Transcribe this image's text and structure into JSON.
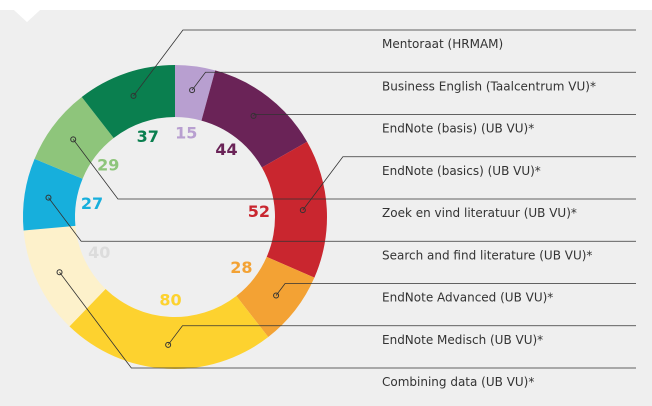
{
  "chart_data": {
    "type": "donut",
    "categories": [
      "Business English (Taalcentrum VU)*",
      "EndNote (basis) (UB VU)*",
      "EndNote (basics) (UB VU)*",
      "EndNote Advanced (UB VU)*",
      "EndNote Medisch (UB VU)*",
      "Combining data (UB VU)*",
      "Search and find literature (UB VU)*",
      "Zoek en vind literatuur (UB VU)*",
      "Mentoraat (HRMAM)"
    ],
    "values": [
      15,
      44,
      52,
      28,
      80,
      40,
      27,
      29,
      37
    ],
    "colors": [
      "#b89fd0",
      "#6a2357",
      "#c9262f",
      "#f3a234",
      "#fdd22f",
      "#fdf1cb",
      "#17afdc",
      "#8ec57b",
      "#0a7f4f"
    ]
  }
}
